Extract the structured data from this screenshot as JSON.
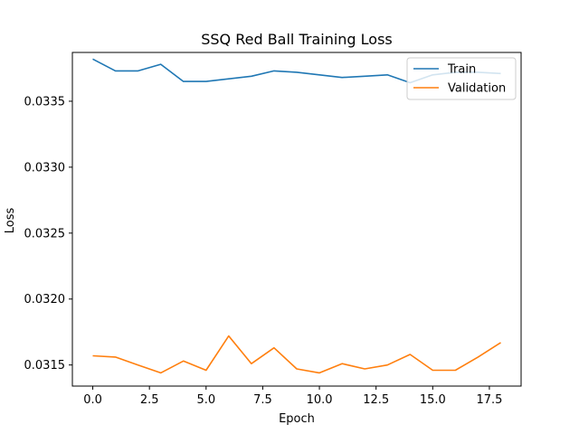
{
  "chart_data": {
    "type": "line",
    "title": "SSQ Red Ball Training Loss",
    "xlabel": "Epoch",
    "ylabel": "Loss",
    "xlim": [
      -0.9,
      18.9
    ],
    "ylim": [
      0.03134,
      0.03387
    ],
    "x_ticks": [
      0.0,
      2.5,
      5.0,
      7.5,
      10.0,
      12.5,
      15.0,
      17.5
    ],
    "x_tick_labels": [
      "0.0",
      "2.5",
      "5.0",
      "7.5",
      "10.0",
      "12.5",
      "15.0",
      "17.5"
    ],
    "y_ticks": [
      0.0315,
      0.032,
      0.0325,
      0.033,
      0.0335
    ],
    "y_tick_labels": [
      "0.0315",
      "0.0320",
      "0.0325",
      "0.0330",
      "0.0335"
    ],
    "grid": false,
    "legend_position": "top-right",
    "x": [
      0,
      1,
      2,
      3,
      4,
      5,
      6,
      7,
      8,
      9,
      10,
      11,
      12,
      13,
      14,
      15,
      16,
      17,
      18
    ],
    "series": [
      {
        "name": "Train",
        "color": "#1f77b4",
        "values": [
          0.03382,
          0.03373,
          0.03373,
          0.03378,
          0.03365,
          0.03365,
          0.03367,
          0.03369,
          0.03373,
          0.03372,
          0.0337,
          0.03368,
          0.03369,
          0.0337,
          0.03364,
          0.0337,
          0.03372,
          0.03372,
          0.03371
        ]
      },
      {
        "name": "Validation",
        "color": "#ff7f0e",
        "values": [
          0.03157,
          0.03156,
          0.0315,
          0.03144,
          0.03153,
          0.03146,
          0.03172,
          0.03151,
          0.03163,
          0.03147,
          0.03144,
          0.03151,
          0.03147,
          0.0315,
          0.03158,
          0.03146,
          0.03146,
          0.03156,
          0.03167
        ]
      }
    ]
  }
}
